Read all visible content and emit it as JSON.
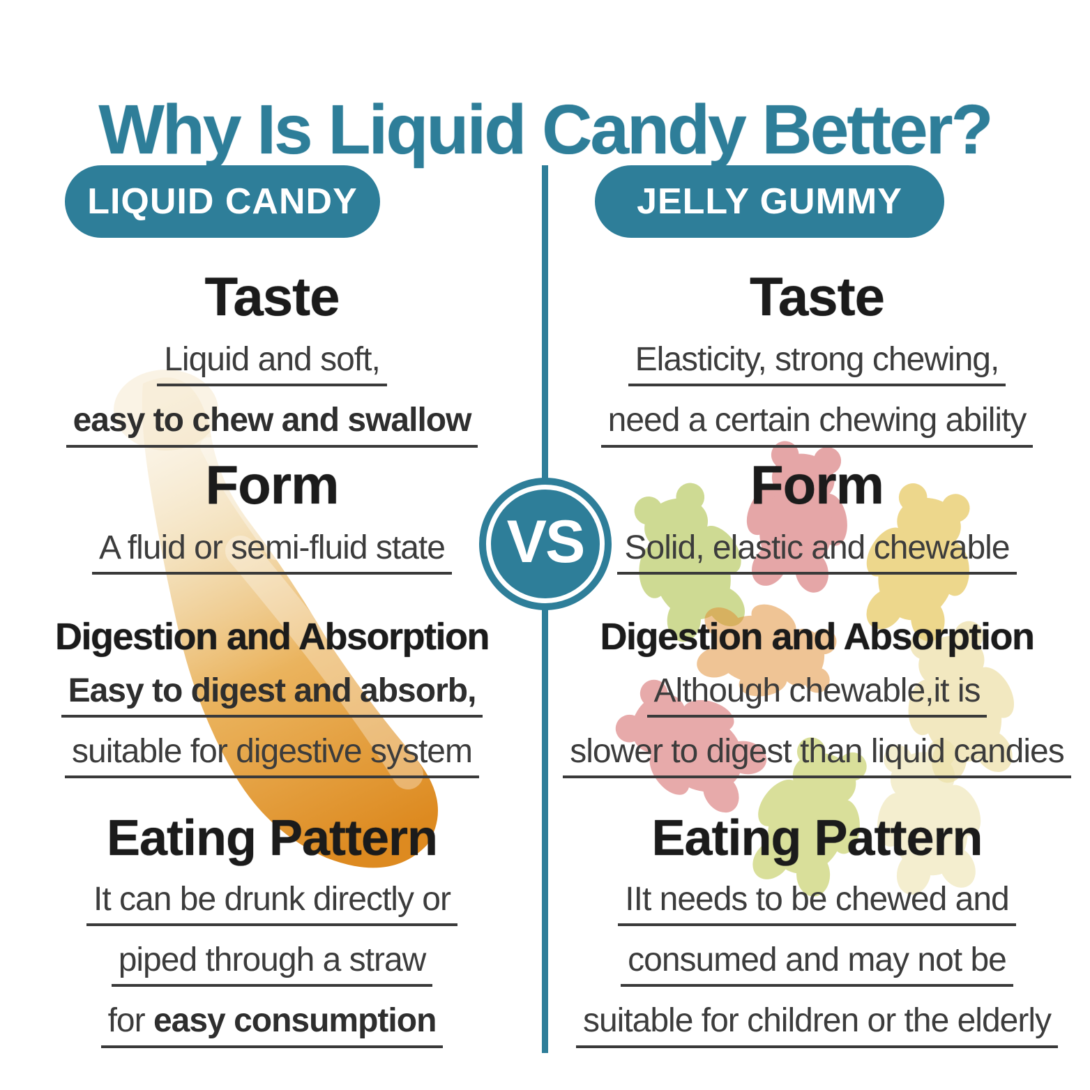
{
  "title": "Why Is Liquid Candy Better?",
  "accent_color": "#2e7e99",
  "text_color": "#3c3c3c",
  "heading_color": "#1b1b1b",
  "vs_badge": "VS",
  "columns": [
    {
      "id": "liquid-candy",
      "header": "LIQUID CANDY",
      "sections": [
        {
          "heading": "Taste",
          "lines": [
            [
              {
                "text": "Liquid and soft,",
                "bold": false
              }
            ],
            [
              {
                "text": "easy to chew and swallow",
                "bold": true
              }
            ]
          ]
        },
        {
          "heading": "Form",
          "lines": [
            [
              {
                "text": "A fluid or semi-fluid state",
                "bold": false
              }
            ]
          ]
        },
        {
          "heading": "Digestion and Absorption",
          "lines": [
            [
              {
                "text": "Easy to digest and absorb,",
                "bold": true
              }
            ],
            [
              {
                "text": "suitable for digestive system",
                "bold": false
              }
            ]
          ]
        },
        {
          "heading": "Eating Pattern",
          "lines": [
            [
              {
                "text": "It can be drunk directly or",
                "bold": false
              }
            ],
            [
              {
                "text": "piped through a straw",
                "bold": false
              }
            ],
            [
              {
                "text": "for ",
                "bold": false
              },
              {
                "text": "easy consumption",
                "bold": true
              }
            ]
          ]
        }
      ]
    },
    {
      "id": "jelly-gummy",
      "header": "JELLY GUMMY",
      "sections": [
        {
          "heading": "Taste",
          "lines": [
            [
              {
                "text": "Elasticity, strong chewing,",
                "bold": false
              }
            ],
            [
              {
                "text": "need a certain chewing ability",
                "bold": false
              }
            ]
          ]
        },
        {
          "heading": "Form",
          "lines": [
            [
              {
                "text": "Solid, elastic and chewable",
                "bold": false
              }
            ]
          ]
        },
        {
          "heading": "Digestion and Absorption",
          "lines": [
            [
              {
                "text": "Although chewable,it is",
                "bold": false
              }
            ],
            [
              {
                "text": "slower to digest than liquid candies",
                "bold": false
              }
            ]
          ]
        },
        {
          "heading": "Eating Pattern",
          "lines": [
            [
              {
                "text": "IIt needs to be chewed and",
                "bold": false
              }
            ],
            [
              {
                "text": "consumed and may not be",
                "bold": false
              }
            ],
            [
              {
                "text": "suitable for children or the elderly",
                "bold": false
              }
            ]
          ]
        }
      ]
    }
  ],
  "decorations": {
    "left_image": "honey-caramel-smear",
    "right_image": "gummy-bears",
    "honey_colors": [
      "#f6ead1",
      "#eed29b",
      "#e8ab4c",
      "#dd8a20"
    ],
    "bear_colors": [
      "#a7bd3c",
      "#cc4f52",
      "#e0b72f",
      "#e08a2e",
      "#e6d383",
      "#d05858",
      "#b5c138",
      "#ece1a8"
    ]
  }
}
